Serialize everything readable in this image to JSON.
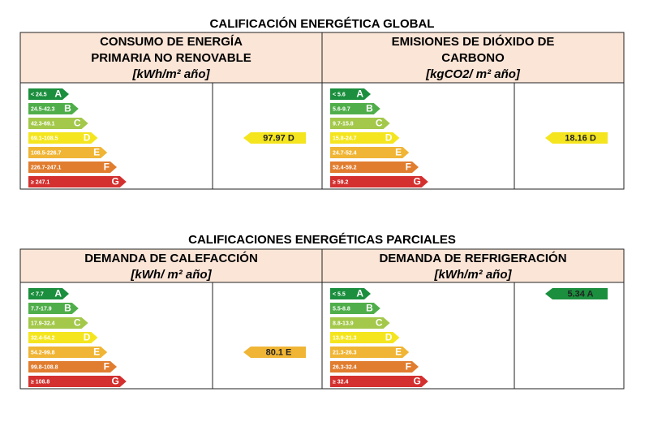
{
  "letters": [
    "A",
    "B",
    "C",
    "D",
    "E",
    "F",
    "G"
  ],
  "colors": [
    "#1b8f3e",
    "#4fae4a",
    "#a3c84a",
    "#f4e51f",
    "#f0b535",
    "#e17d2f",
    "#d3302f"
  ],
  "sections": [
    {
      "title": "CALIFICACIÓN ENERGÉTICA GLOBAL",
      "panels": [
        {
          "heading": [
            "CONSUMO DE ENERGÍA",
            "PRIMARIA NO RENOVABLE"
          ],
          "unit": "[kWh/m² año]",
          "scale": [
            "< 24.5",
            "24.5-42.3",
            "42.3-69.1",
            "69.1-108.5",
            "108.5-226.7",
            "226.7-247.1",
            "≥ 247.1"
          ],
          "rating": "97.97 D"
        },
        {
          "heading": [
            "EMISIONES DE DIÓXIDO DE",
            "CARBONO"
          ],
          "unit": "[kgCO2/ m² año]",
          "scale": [
            "< 5.6",
            "5.6-9.7",
            "9.7-15.8",
            "15.8-24.7",
            "24.7-52.4",
            "52.4-59.2",
            "≥ 59.2"
          ],
          "rating": "18.16 D"
        }
      ]
    },
    {
      "title": "CALIFICACIONES ENERGÉTICAS PARCIALES",
      "panels": [
        {
          "heading": [
            "DEMANDA DE CALEFACCIÓN"
          ],
          "unit": "[kWh/ m² año]",
          "scale": [
            "< 7.7",
            "7.7-17.9",
            "17.9-32.4",
            "32.4-54.2",
            "54.2-99.8",
            "99.8-108.8",
            "≥ 108.8"
          ],
          "rating": "80.1 E"
        },
        {
          "heading": [
            "DEMANDA DE REFRIGERACIÓN"
          ],
          "unit": "[kWh/m² año]",
          "scale": [
            "< 5.5",
            "5.5-8.8",
            "8.8-13.9",
            "13.9-21.3",
            "21.3-26.3",
            "26.3-32.4",
            "≥ 32.4"
          ],
          "rating": "5.34 A"
        }
      ]
    }
  ]
}
